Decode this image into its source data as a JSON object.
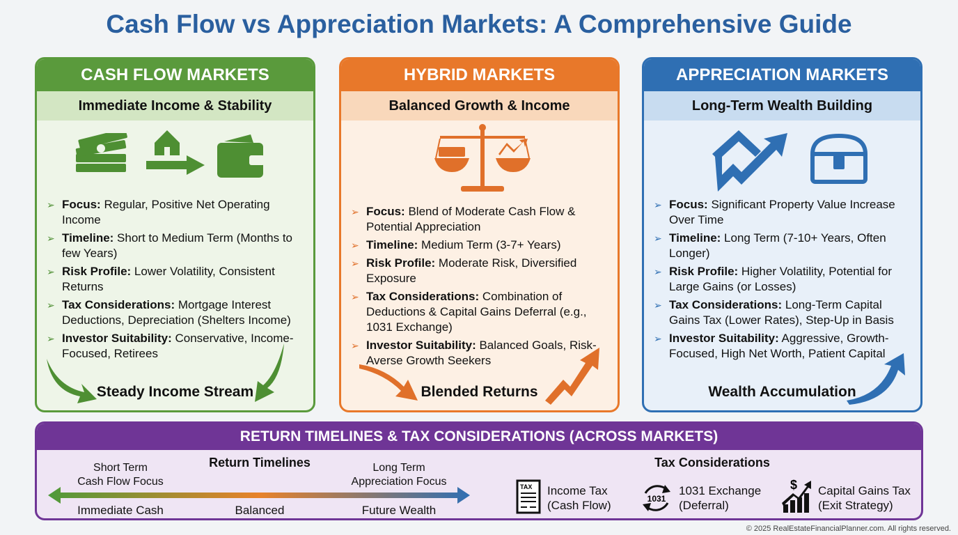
{
  "title": "Cash Flow vs Appreciation Markets: A Comprehensive Guide",
  "colors": {
    "cash_flow": "#5a9a3c",
    "hybrid": "#e8782a",
    "appreciation": "#2f6fb3",
    "bottom": "#6f3596",
    "title": "#2a5f9f"
  },
  "cards": [
    {
      "header": "CASH FLOW MARKETS",
      "subtitle": "Immediate Income & Stability",
      "icons": [
        "money-stack-icon",
        "house-arrow-icon",
        "wallet-icon"
      ],
      "items": [
        {
          "label": "Focus:",
          "text": " Regular, Positive Net Operating Income"
        },
        {
          "label": "Timeline:",
          "text": " Short to Medium Term (Months to few Years)"
        },
        {
          "label": "Risk Profile:",
          "text": " Lower Volatility, Consistent Returns"
        },
        {
          "label": "Tax Considerations:",
          "text": " Mortgage Interest Deductions, Depreciation (Shelters Income)"
        },
        {
          "label": "Investor Suitability:",
          "text": " Conservative, Income-Focused, Retirees"
        }
      ],
      "footer": "Steady Income Stream"
    },
    {
      "header": "HYBRID MARKETS",
      "subtitle": "Balanced Growth & Income",
      "icons": [
        "balance-scale-icon"
      ],
      "items": [
        {
          "label": "Focus:",
          "text": " Blend of Moderate Cash Flow & Potential Appreciation"
        },
        {
          "label": "Timeline:",
          "text": " Medium Term (3-7+ Years)"
        },
        {
          "label": "Risk Profile:",
          "text": " Moderate Risk, Diversified Exposure"
        },
        {
          "label": "Tax Considerations:",
          "text": " Combination of Deductions & Capital Gains Deferral (e.g., 1031 Exchange)"
        },
        {
          "label": "Investor Suitability:",
          "text": " Balanced Goals, Risk-Averse Growth Seekers"
        }
      ],
      "footer": "Blended Returns"
    },
    {
      "header": "APPRECIATION MARKETS",
      "subtitle": "Long-Term Wealth Building",
      "icons": [
        "house-growth-icon",
        "treasure-chest-icon"
      ],
      "items": [
        {
          "label": "Focus:",
          "text": " Significant Property Value Increase Over Time"
        },
        {
          "label": "Timeline:",
          "text": " Long Term (7-10+ Years, Often Longer)"
        },
        {
          "label": "Risk Profile:",
          "text": " Higher Volatility, Potential for Large Gains (or Losses)"
        },
        {
          "label": "Tax Considerations:",
          "text": " Long-Term Capital Gains Tax (Lower Rates), Step-Up in Basis"
        },
        {
          "label": "Investor Suitability:",
          "text": " Aggressive, Growth-Focused, High Net Worth, Patient Capital"
        }
      ],
      "footer": "Wealth Accumulation"
    }
  ],
  "bottom": {
    "header": "RETURN TIMELINES & TAX CONSIDERATIONS (ACROSS MARKETS)",
    "timelines": {
      "title": "Return Timelines",
      "left_top": "Short Term",
      "left_top2": "Cash Flow Focus",
      "right_top": "Long Term",
      "right_top2": "Appreciation Focus",
      "left_bottom": "Immediate Cash",
      "mid_bottom": "Balanced",
      "right_bottom": "Future Wealth"
    },
    "tax": {
      "title": "Tax Considerations",
      "items": [
        {
          "icon": "tax-document-icon",
          "line1": "Income Tax",
          "line2": "(Cash Flow)",
          "badge": "TAX"
        },
        {
          "icon": "exchange-cycle-icon",
          "line1": "1031 Exchange",
          "line2": "(Deferral)",
          "badge": "1031"
        },
        {
          "icon": "capital-gains-chart-icon",
          "line1": "Capital Gains Tax",
          "line2": "(Exit Strategy)",
          "badge": "$"
        }
      ]
    }
  },
  "copyright": "© 2025 RealEstateFinancialPlanner.com. All rights reserved."
}
